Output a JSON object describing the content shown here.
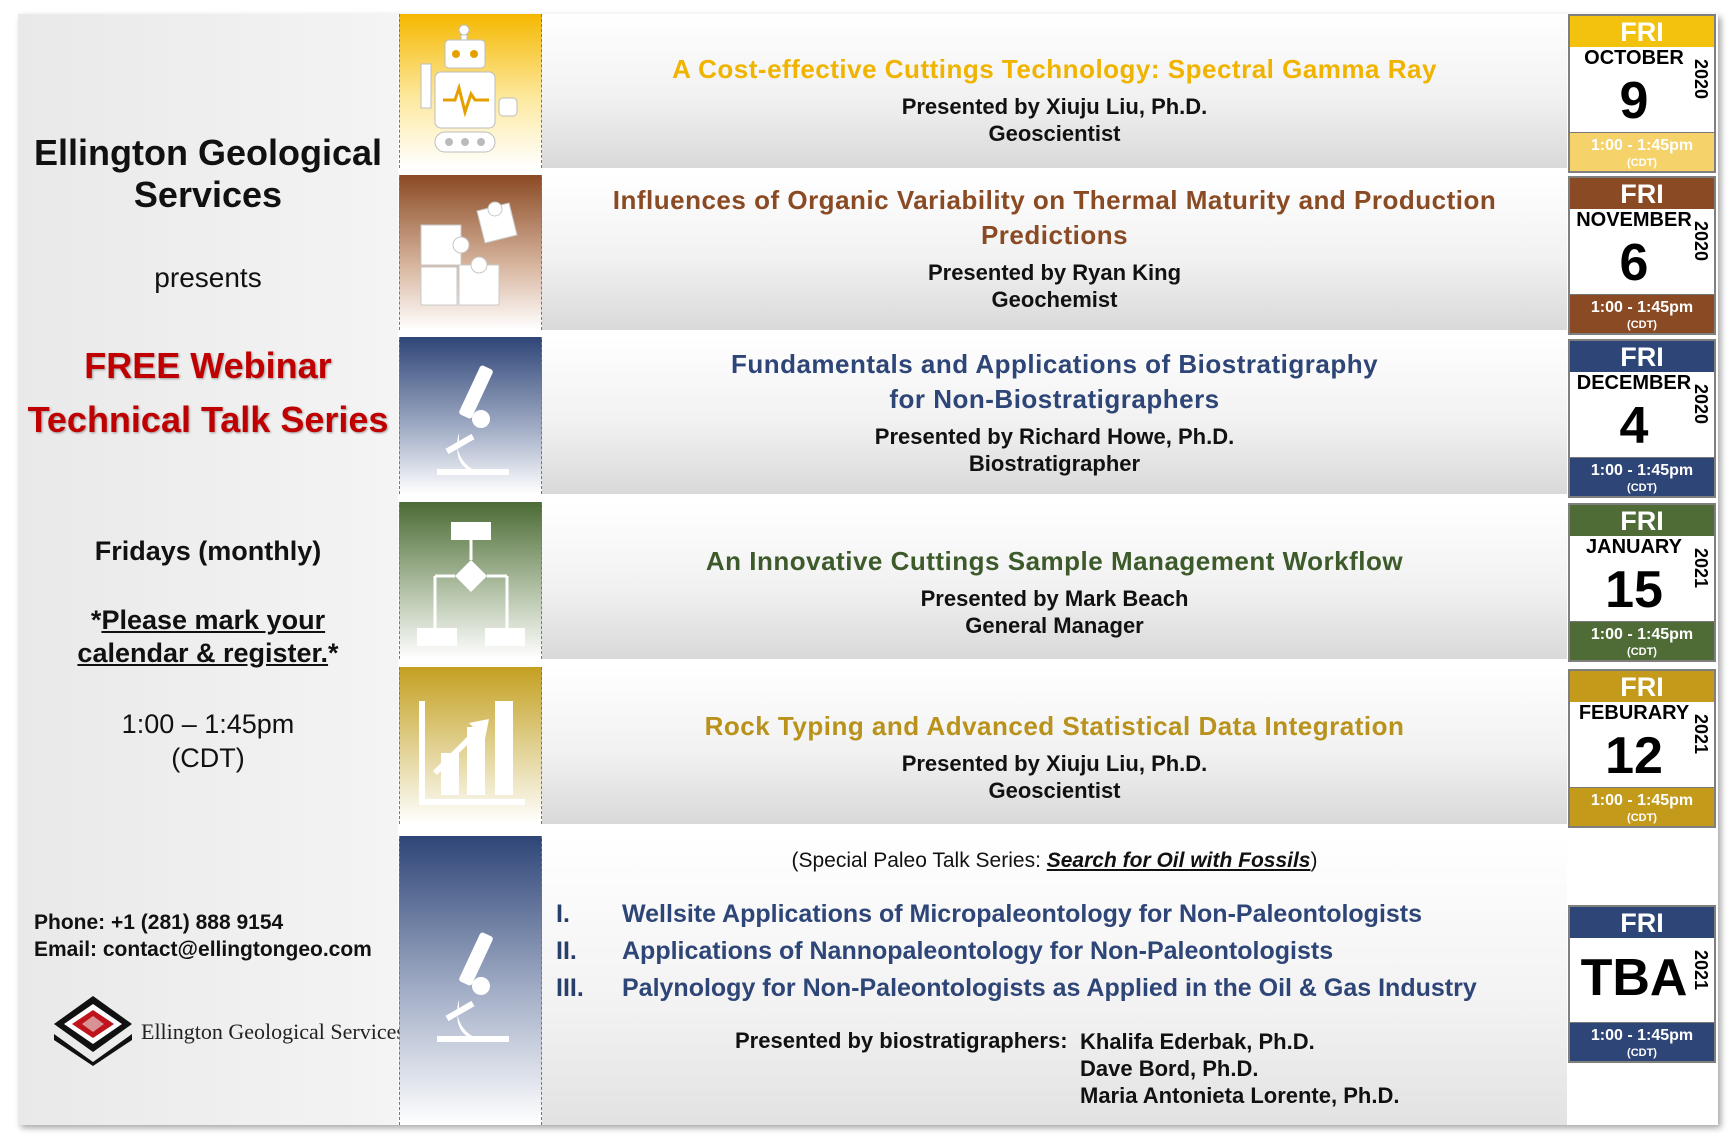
{
  "left": {
    "org_line1": "Ellington Geological",
    "org_line2": "Services",
    "presents": "presents",
    "free_line1": "FREE Webinar",
    "free_line2": "Technical Talk Series",
    "fridays": "Fridays (monthly)",
    "mark_star1": "*",
    "mark_u1": "Please mark your",
    "mark_u2": "calendar & register.",
    "mark_star2": "*",
    "time_line1": "1:00 – 1:45pm",
    "time_line2": "(CDT)",
    "phone": "Phone: +1 (281) 888 9154",
    "email": "Email: contact@ellingtongeo.com",
    "logo_text": "Ellington Geological Services"
  },
  "talks": [
    {
      "icon": "robot-icon",
      "color": "#f0b400",
      "title_line1": "A Cost-effective Cuttings Technology: Spectral Gamma Ray",
      "title_line2": "",
      "presenter": "Presented by Xiuju Liu, Ph.D.",
      "role": "Geoscientist",
      "cal": {
        "day": "FRI",
        "month": "OCTOBER",
        "date": "9",
        "year": "2020",
        "time": "1:00 - 1:45pm",
        "tz": "(CDT)"
      }
    },
    {
      "icon": "puzzle-icon",
      "color": "#8a4a23",
      "title_line1": "Influences of Organic Variability on Thermal Maturity and Production",
      "title_line2": "Predictions",
      "presenter": "Presented by Ryan King",
      "role": "Geochemist",
      "cal": {
        "day": "FRI",
        "month": "NOVEMBER",
        "date": "6",
        "year": "2020",
        "time": "1:00 - 1:45pm",
        "tz": "(CDT)"
      }
    },
    {
      "icon": "microscope-icon",
      "color": "#2e4577",
      "title_line1": "Fundamentals and Applications of Biostratigraphy",
      "title_line2": "for Non-Biostratigraphers",
      "presenter": "Presented by Richard Howe, Ph.D.",
      "role": "Biostratigrapher",
      "cal": {
        "day": "FRI",
        "month": "DECEMBER",
        "date": "4",
        "year": "2020",
        "time": "1:00 - 1:45pm",
        "tz": "(CDT)"
      }
    },
    {
      "icon": "workflow-icon",
      "color": "#3d5a2a",
      "title_line1": "An Innovative Cuttings Sample Management Workflow",
      "title_line2": "",
      "presenter": "Presented by Mark Beach",
      "role": "General Manager",
      "cal": {
        "day": "FRI",
        "month": "JANUARY",
        "date": "15",
        "year": "2021",
        "time": "1:00 - 1:45pm",
        "tz": "(CDT)"
      }
    },
    {
      "icon": "bar-chart-icon",
      "color": "#b8921a",
      "title_line1": "Rock Typing and Advanced Statistical Data Integration",
      "title_line2": "",
      "presenter": "Presented by Xiuju Liu, Ph.D.",
      "role": "Geoscientist",
      "cal": {
        "day": "FRI",
        "month": "FEBURARY",
        "date": "12",
        "year": "2021",
        "time": "1:00 - 1:45pm",
        "tz": "(CDT)"
      }
    }
  ],
  "paleo": {
    "icon": "microscope-icon",
    "color": "#2e4577",
    "special_prefix": "(Special Paleo Talk Series: ",
    "special_link": "Search for Oil with Fossils",
    "special_suffix": ")",
    "items": [
      {
        "num": "I.",
        "title": "Wellsite Applications of Micropaleontology for Non-Paleontologists"
      },
      {
        "num": "II.",
        "title": "Applications of Nannopaleontology for Non-Paleontologists"
      },
      {
        "num": "III.",
        "title": "Palynology for Non-Paleontologists as Applied in the Oil & Gas Industry"
      }
    ],
    "presented_by": "Presented by biostratigraphers:",
    "names": [
      "Khalifa Ederbak, Ph.D.",
      "Dave Bord, Ph.D.",
      "Maria Antonieta Lorente, Ph.D."
    ],
    "cal": {
      "day": "FRI",
      "date": "TBA",
      "year": "2021",
      "time": "1:00 - 1:45pm",
      "tz": "(CDT)"
    }
  }
}
